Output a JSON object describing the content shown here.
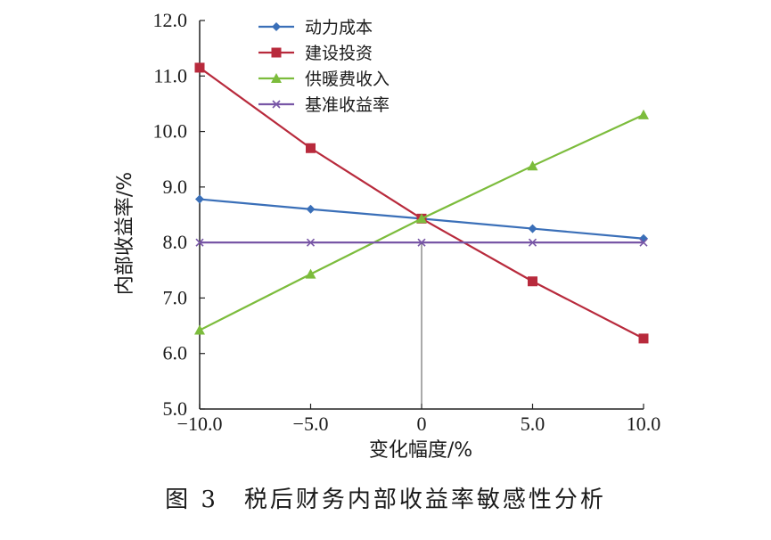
{
  "caption": "图 3　税后财务内部收益率敏感性分析",
  "chart_data": {
    "type": "line",
    "title": "",
    "xlabel": "变化幅度/%",
    "ylabel": "内部收益率/%",
    "x": [
      -10.0,
      -5.0,
      0,
      5.0,
      10.0
    ],
    "x_tick_labels": [
      "−10.0",
      "−5.0",
      "0",
      "5.0",
      "10.0"
    ],
    "y_tick_labels": [
      "5.0",
      "6.0",
      "7.0",
      "8.0",
      "9.0",
      "10.0",
      "11.0",
      "12.0"
    ],
    "xlim": [
      -10,
      10
    ],
    "ylim": [
      5,
      12
    ],
    "grid": false,
    "legend_position": "top-center",
    "series": [
      {
        "name": "动力成本",
        "values": [
          8.78,
          8.6,
          8.43,
          8.25,
          8.07
        ],
        "color": "#3a6fb8",
        "marker": "diamond"
      },
      {
        "name": "建设投资",
        "values": [
          11.15,
          9.7,
          8.43,
          7.3,
          6.27
        ],
        "color": "#b82a3c",
        "marker": "square"
      },
      {
        "name": "供暖费收入",
        "values": [
          6.42,
          7.43,
          8.43,
          9.38,
          10.3
        ],
        "color": "#7cbc3c",
        "marker": "triangle"
      },
      {
        "name": "基准收益率",
        "values": [
          8.0,
          8.0,
          8.0,
          8.0,
          8.0
        ],
        "color": "#7856a6",
        "marker": "x"
      }
    ]
  }
}
